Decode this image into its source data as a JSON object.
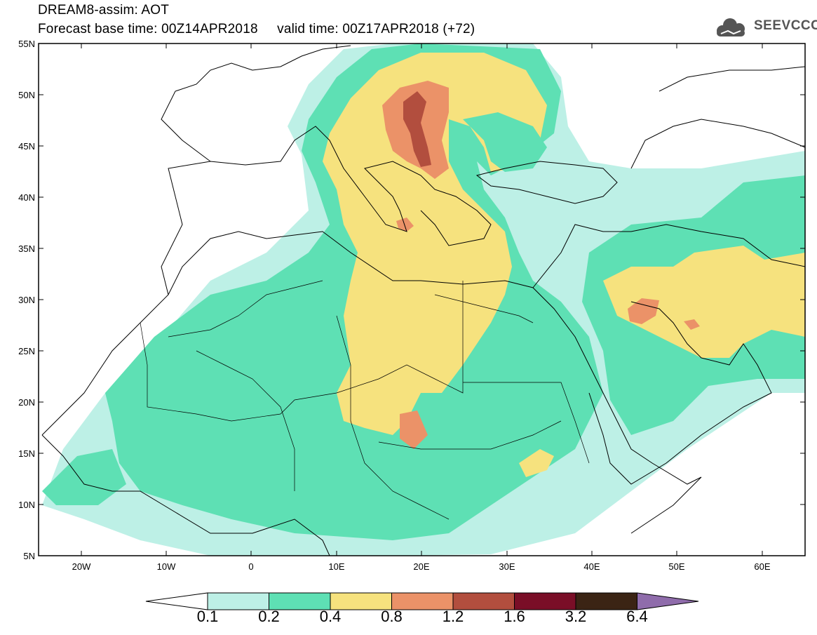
{
  "title": {
    "line1": "DREAM8-assim: AOT",
    "line2": "Forecast base time: 00Z14APR2018     valid time: 00Z17APR2018 (+72)"
  },
  "logo": {
    "text": "SEEVCCC",
    "icon": "cloud-icon"
  },
  "axes": {
    "lat_labels": [
      "55N",
      "50N",
      "45N",
      "40N",
      "35N",
      "30N",
      "25N",
      "20N",
      "15N",
      "10N",
      "5N"
    ],
    "lon_labels": [
      "20W",
      "10W",
      "0",
      "10E",
      "20E",
      "30E",
      "40E",
      "50E",
      "60E"
    ],
    "lat_range": [
      5,
      55
    ],
    "lon_range": [
      -25,
      65
    ]
  },
  "legend": {
    "labels": [
      "0.1",
      "0.2",
      "0.4",
      "0.8",
      "1.2",
      "1.6",
      "3.2",
      "6.4"
    ],
    "colors": [
      "#ffffff",
      "#bdf0e6",
      "#5ee0b4",
      "#f6e27e",
      "#eb9268",
      "#b24e3e",
      "#7a0e27",
      "#3b2414",
      "#8f6cab"
    ]
  },
  "colors": {
    "level1": "#bdf0e6",
    "level2": "#5ee0b4",
    "level3": "#f6e27e",
    "level4": "#eb9268",
    "level5": "#b24e3e",
    "coast": "#000000"
  }
}
